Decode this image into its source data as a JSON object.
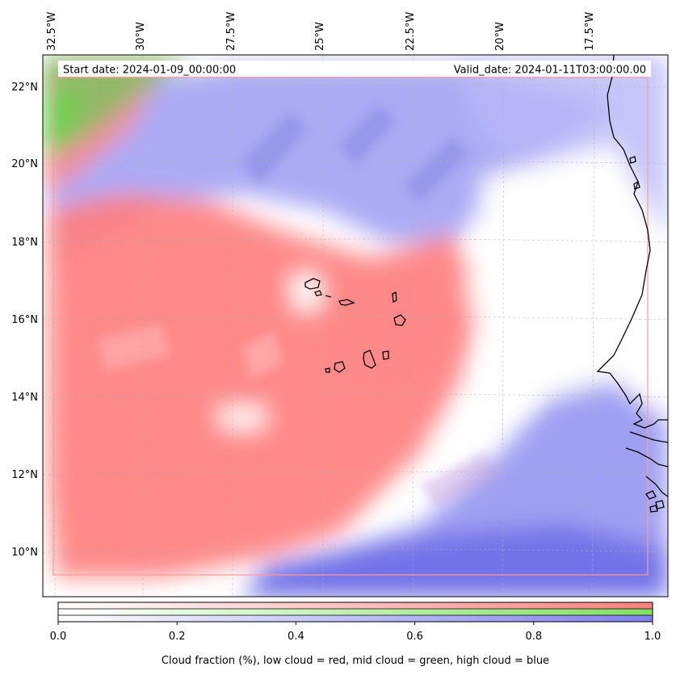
{
  "map": {
    "start_date": "Start date: 2024-01-09_00:00:00",
    "valid_date": "Valid_date: 2024-01-11T03:00:00.00",
    "lon_labels": [
      "32.5°W",
      "30°W",
      "27.5°W",
      "25°W",
      "22.5°W",
      "20°W",
      "17.5°W"
    ],
    "lat_labels": [
      "22°N",
      "20°N",
      "18°N",
      "16°N",
      "14°N",
      "12°N",
      "10°N"
    ],
    "colors": {
      "low_cloud": "#ff7f7f",
      "mid_cloud": "#7fe07f",
      "high_cloud": "#7f7fef",
      "coastline": "#000000",
      "gridline": "#b0b0b0"
    }
  },
  "colorbar": {
    "label": "Cloud fraction (%), low cloud = red, mid cloud = green, high cloud = blue",
    "ticks": [
      "0.0",
      "0.2",
      "0.4",
      "0.6",
      "0.8",
      "1.0"
    ],
    "range": [
      0,
      1
    ]
  }
}
